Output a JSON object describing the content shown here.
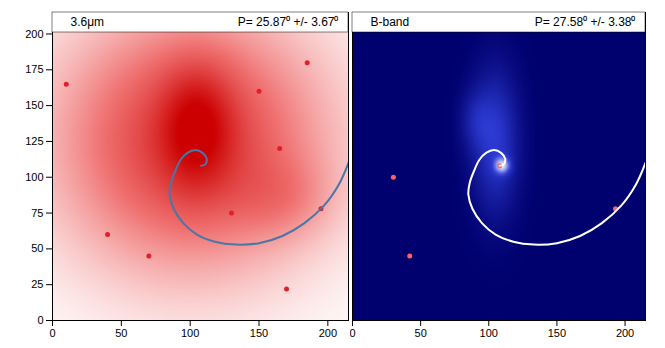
{
  "chart_data": [
    {
      "type": "image",
      "title": "3.6μm",
      "annotation": "P= 25.87⁰ +/- 3.67⁰",
      "xlim": [
        0,
        215
      ],
      "ylim": [
        0,
        215
      ],
      "xticks": [
        0,
        50,
        100,
        150,
        200
      ],
      "yticks": [
        0,
        25,
        50,
        75,
        100,
        125,
        150,
        175,
        200
      ],
      "tick_labels": true,
      "glow": [
        {
          "x": 100,
          "y": 125,
          "sx": 70,
          "sy": 65,
          "amp": 0.75
        },
        {
          "x": 105,
          "y": 135,
          "sx": 18,
          "sy": 30,
          "amp": 0.35
        },
        {
          "x": 170,
          "y": 85,
          "sx": 25,
          "sy": 20,
          "amp": 0.15
        }
      ],
      "sources": {
        "color": "#e0202a",
        "x": [
          185,
          165,
          195,
          70,
          170,
          130,
          10,
          150,
          40
        ],
        "y": [
          180,
          120,
          78,
          45,
          22,
          75,
          165,
          160,
          60
        ]
      },
      "spiral": {
        "color": "#4a76a8",
        "x": [
          108,
          111,
          112,
          109,
          104,
          98,
          93,
          89,
          86,
          85,
          88,
          95,
          105,
          118,
          133,
          150,
          167,
          183,
          197,
          208,
          215
        ],
        "y": [
          108,
          109,
          113,
          117,
          119,
          117,
          112,
          104,
          96,
          88,
          78,
          68,
          60,
          55,
          53,
          54,
          59,
          68,
          80,
          95,
          110
        ]
      }
    },
    {
      "type": "image",
      "title": "B-band",
      "annotation": "P= 27.58⁰ +/- 3.38⁰",
      "xlim": [
        0,
        215
      ],
      "ylim": [
        0,
        215
      ],
      "xticks": [
        0,
        50,
        100,
        150,
        200
      ],
      "tick_labels": "x",
      "glow": [
        {
          "x": 105,
          "y": 125,
          "sx": 12,
          "sy": 35,
          "amp": 0.45
        },
        {
          "x": 110,
          "y": 108,
          "sx": 4,
          "sy": 4,
          "amp": 0.6
        },
        {
          "x": 90,
          "y": 140,
          "sx": 8,
          "sy": 15,
          "amp": 0.2
        }
      ],
      "sources": {
        "color": "#ff6060",
        "x": [
          108,
          193,
          42,
          30
        ],
        "y": [
          108,
          78,
          45,
          100
        ]
      },
      "spiral": {
        "color": "#ffffff",
        "x": [
          108,
          111,
          112,
          109,
          104,
          98,
          93,
          89,
          86,
          85,
          88,
          95,
          105,
          118,
          133,
          150,
          167,
          183,
          197,
          208,
          215
        ],
        "y": [
          108,
          109,
          113,
          117,
          119,
          117,
          112,
          104,
          96,
          88,
          78,
          68,
          60,
          55,
          53,
          54,
          59,
          68,
          80,
          95,
          110
        ]
      }
    }
  ]
}
